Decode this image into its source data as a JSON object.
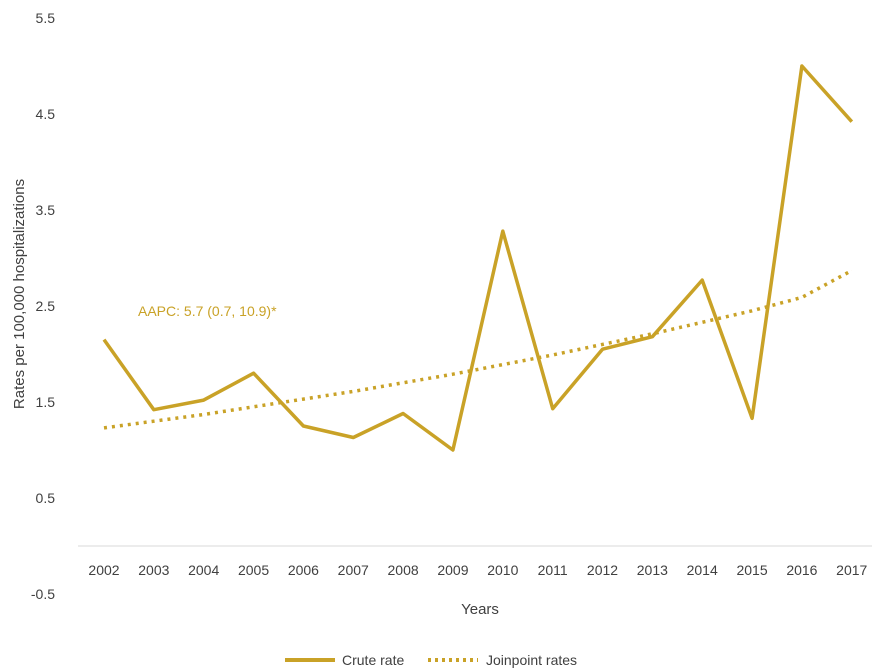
{
  "chart_data": {
    "type": "line",
    "title": "",
    "xlabel": "Years",
    "ylabel": "Rates per 100,000 hospitalizations",
    "x": [
      "2002",
      "2003",
      "2004",
      "2005",
      "2006",
      "2007",
      "2008",
      "2009",
      "2010",
      "2011",
      "2012",
      "2013",
      "2014",
      "2015",
      "2016",
      "2017"
    ],
    "y_ticks": [
      "-0.5",
      "0.5",
      "1.5",
      "2.5",
      "3.5",
      "4.5",
      "5.5"
    ],
    "ylim": [
      -0.5,
      5.5
    ],
    "grid": false,
    "legend_position": "bottom",
    "series": [
      {
        "name": "Crute rate",
        "style": "solid",
        "color": "#C9A227",
        "values": [
          2.15,
          1.42,
          1.52,
          1.8,
          1.25,
          1.13,
          1.38,
          1.0,
          3.28,
          1.43,
          2.05,
          2.18,
          2.77,
          1.33,
          5.0,
          4.42
        ]
      },
      {
        "name": "Joinpoint rates",
        "style": "dotted",
        "color": "#C9A227",
        "values": [
          1.23,
          1.3,
          1.37,
          1.45,
          1.53,
          1.61,
          1.7,
          1.79,
          1.89,
          1.99,
          2.1,
          2.21,
          2.33,
          2.45,
          2.59,
          2.87
        ]
      }
    ],
    "annotations": [
      {
        "text": "AAPC: 5.7 (0.7, 10.9)*",
        "near": "2002-2005, y≈2.5",
        "color": "#C9A227"
      }
    ]
  }
}
